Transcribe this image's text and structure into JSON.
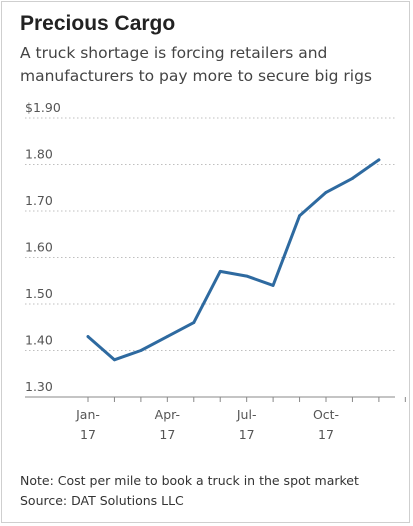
{
  "chart_data": {
    "type": "line",
    "title": "Precious Cargo",
    "subtitle": "A truck shortage is forcing retailers and\nmanufacturers to pay more to secure big rigs",
    "xlabel": "",
    "ylabel": "",
    "ylim": [
      1.3,
      1.9
    ],
    "yticks": [
      {
        "value": 1.9,
        "label": "$1.90"
      },
      {
        "value": 1.8,
        "label": "1.80"
      },
      {
        "value": 1.7,
        "label": "1.70"
      },
      {
        "value": 1.6,
        "label": "1.60"
      },
      {
        "value": 1.5,
        "label": "1.50"
      },
      {
        "value": 1.4,
        "label": "1.40"
      },
      {
        "value": 1.3,
        "label": "1.30"
      }
    ],
    "xticks": [
      {
        "value": "2017-01",
        "label_line1": "Jan-",
        "label_line2": "17"
      },
      {
        "value": "2017-04",
        "label_line1": "Apr-",
        "label_line2": "17"
      },
      {
        "value": "2017-07",
        "label_line1": "Jul-",
        "label_line2": "17"
      },
      {
        "value": "2017-10",
        "label_line1": "Oct-",
        "label_line2": "17"
      }
    ],
    "x_range": [
      "2017-01",
      "2018-01"
    ],
    "grid": true,
    "series": [
      {
        "color": "#2e6aa0",
        "points": [
          {
            "x": "2017-01",
            "y": 1.43
          },
          {
            "x": "2017-02",
            "y": 1.38
          },
          {
            "x": "2017-03",
            "y": 1.4
          },
          {
            "x": "2017-04",
            "y": 1.43
          },
          {
            "x": "2017-05",
            "y": 1.46
          },
          {
            "x": "2017-06",
            "y": 1.57
          },
          {
            "x": "2017-07",
            "y": 1.56
          },
          {
            "x": "2017-08",
            "y": 1.54
          },
          {
            "x": "2017-09",
            "y": 1.69
          },
          {
            "x": "2017-10",
            "y": 1.74
          },
          {
            "x": "2017-11",
            "y": 1.77
          },
          {
            "x": "2017-12",
            "y": 1.81
          }
        ]
      }
    ]
  },
  "footer": {
    "note": "Note: Cost per mile to book a truck in the spot market",
    "source": "Source: DAT Solutions LLC"
  },
  "colors": {
    "line": "#2e6aa0",
    "grid": "#bfbfbf",
    "text": "#555555"
  }
}
